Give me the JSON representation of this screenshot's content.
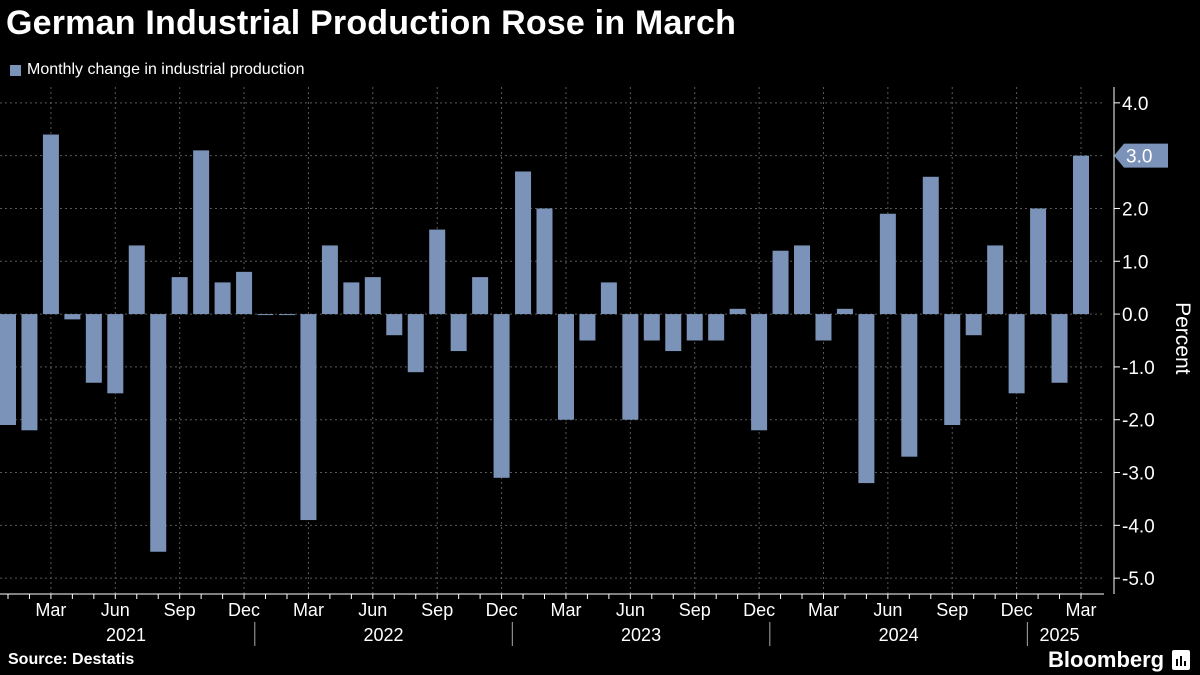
{
  "chart_data": {
    "type": "bar",
    "title": "German Industrial Production Rose in March",
    "legend": {
      "label": "Monthly change in industrial production",
      "position": "top-left"
    },
    "series_color": "#7b93b8",
    "ylabel": "Percent",
    "ylim": [
      -5.3,
      4.3
    ],
    "yticks": [
      4.0,
      3.0,
      2.0,
      1.0,
      0.0,
      -1.0,
      -2.0,
      -3.0,
      -4.0,
      -5.0
    ],
    "ytick_labels": [
      "4.0",
      "3.0",
      "2.0",
      "1.0",
      "0.0",
      "-1.0",
      "-2.0",
      "-3.0",
      "-4.0",
      "-5.0"
    ],
    "axis_side": "right",
    "grid": true,
    "latest_value_label": "3.0",
    "categories": [
      "2021-01",
      "2021-02",
      "2021-03",
      "2021-04",
      "2021-05",
      "2021-06",
      "2021-07",
      "2021-08",
      "2021-09",
      "2021-10",
      "2021-11",
      "2021-12",
      "2022-01",
      "2022-02",
      "2022-03",
      "2022-04",
      "2022-05",
      "2022-06",
      "2022-07",
      "2022-08",
      "2022-09",
      "2022-10",
      "2022-11",
      "2022-12",
      "2023-01",
      "2023-02",
      "2023-03",
      "2023-04",
      "2023-05",
      "2023-06",
      "2023-07",
      "2023-08",
      "2023-09",
      "2023-10",
      "2023-11",
      "2023-12",
      "2024-01",
      "2024-02",
      "2024-03",
      "2024-04",
      "2024-05",
      "2024-06",
      "2024-07",
      "2024-08",
      "2024-09",
      "2024-10",
      "2024-11",
      "2024-12",
      "2025-01",
      "2025-02",
      "2025-03"
    ],
    "values": [
      -2.1,
      -2.2,
      3.4,
      -0.1,
      -1.3,
      -1.5,
      1.3,
      -4.5,
      0.7,
      3.1,
      0.6,
      0.8,
      0.0,
      0.0,
      -3.9,
      1.3,
      0.6,
      0.7,
      -0.4,
      -1.1,
      1.6,
      -0.7,
      0.7,
      -3.1,
      2.7,
      2.0,
      -2.0,
      -0.5,
      0.6,
      -2.0,
      -0.5,
      -0.7,
      -0.5,
      -0.5,
      0.1,
      -2.2,
      1.2,
      1.3,
      -0.5,
      0.1,
      -3.2,
      1.9,
      -2.7,
      2.6,
      -2.1,
      -0.4,
      1.3,
      -1.5,
      2.0,
      -1.3,
      3.0
    ],
    "month_ticks": [
      {
        "index": 2,
        "label": "Mar"
      },
      {
        "index": 5,
        "label": "Jun"
      },
      {
        "index": 8,
        "label": "Sep"
      },
      {
        "index": 11,
        "label": "Dec"
      },
      {
        "index": 14,
        "label": "Mar"
      },
      {
        "index": 17,
        "label": "Jun"
      },
      {
        "index": 20,
        "label": "Sep"
      },
      {
        "index": 23,
        "label": "Dec"
      },
      {
        "index": 26,
        "label": "Mar"
      },
      {
        "index": 29,
        "label": "Jun"
      },
      {
        "index": 32,
        "label": "Sep"
      },
      {
        "index": 35,
        "label": "Dec"
      },
      {
        "index": 38,
        "label": "Mar"
      },
      {
        "index": 41,
        "label": "Jun"
      },
      {
        "index": 44,
        "label": "Sep"
      },
      {
        "index": 47,
        "label": "Dec"
      },
      {
        "index": 50,
        "label": "Mar"
      }
    ],
    "year_groups": [
      {
        "label": "2021",
        "start": 0,
        "end": 11
      },
      {
        "label": "2022",
        "start": 12,
        "end": 23
      },
      {
        "label": "2023",
        "start": 24,
        "end": 35
      },
      {
        "label": "2024",
        "start": 36,
        "end": 47
      },
      {
        "label": "2025",
        "start": 48,
        "end": 50
      }
    ]
  },
  "footer": {
    "source": "Source: Destatis",
    "brand": "Bloomberg",
    "brand_icon": "bloomberg-terminal-icon"
  }
}
